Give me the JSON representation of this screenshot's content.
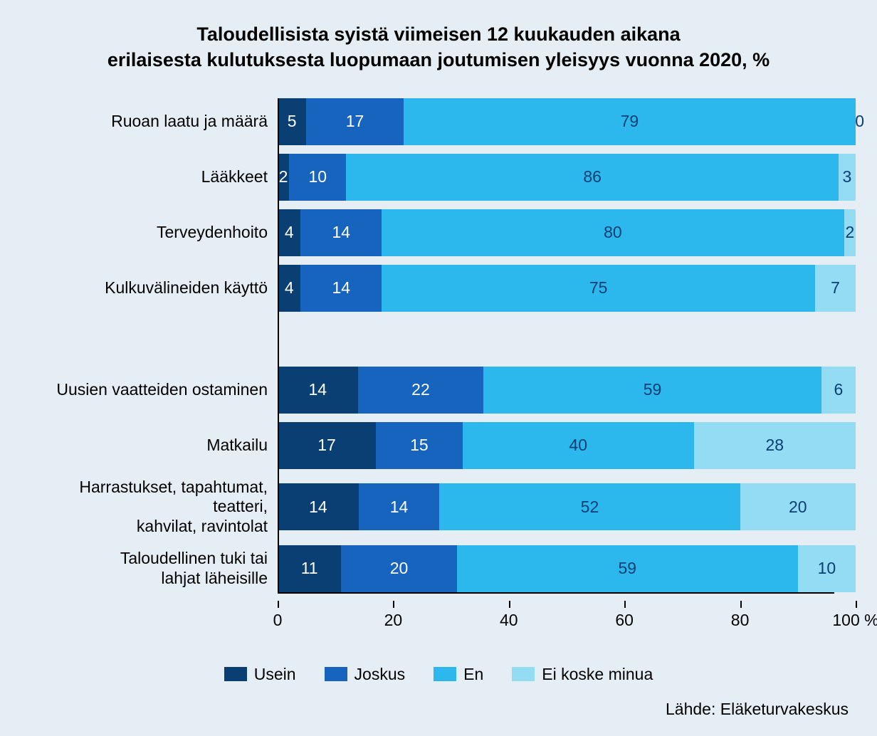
{
  "chart": {
    "type": "stacked_bar_horizontal",
    "background_color": "#e5eef4",
    "bar_area_background": "#ffffff",
    "title_lines": [
      "Taloudellisista syistä viimeisen 12 kuukauden aikana",
      "erilaisesta kulutuksesta luopumaan joutumisen yleisyys vuonna 2020, %"
    ],
    "title_fontsize": 27,
    "label_fontsize": 23,
    "value_fontsize": 23,
    "axis_fontsize": 23,
    "legend_fontsize": 23,
    "source_fontsize": 23,
    "xlim": [
      0,
      100
    ],
    "xticks": [
      0,
      20,
      40,
      60,
      80,
      100
    ],
    "xtick_suffix_last": " %",
    "series": [
      {
        "key": "usein",
        "label": "Usein",
        "color": "#0a3f73",
        "text_color": "#ffffff"
      },
      {
        "key": "joskus",
        "label": "Joskus",
        "color": "#1764bf",
        "text_color": "#ffffff"
      },
      {
        "key": "en",
        "label": "En",
        "color": "#2cb8ed",
        "text_color": "#0a3f73"
      },
      {
        "key": "eikoske",
        "label": "Ei koske minua",
        "color": "#94dbf4",
        "text_color": "#0a3f73"
      }
    ],
    "groups": [
      {
        "rows": [
          {
            "label": "Ruoan laatu ja määrä",
            "values": {
              "usein": 5,
              "joskus": 17,
              "en": 79,
              "eikoske": 0
            }
          },
          {
            "label": "Lääkkeet",
            "values": {
              "usein": 2,
              "joskus": 10,
              "en": 86,
              "eikoske": 3
            }
          },
          {
            "label": "Terveydenhoito",
            "values": {
              "usein": 4,
              "joskus": 14,
              "en": 80,
              "eikoske": 2
            }
          },
          {
            "label": "Kulkuvälineiden käyttö",
            "values": {
              "usein": 4,
              "joskus": 14,
              "en": 75,
              "eikoske": 7
            }
          }
        ]
      },
      {
        "rows": [
          {
            "label": "Uusien vaatteiden ostaminen",
            "values": {
              "usein": 14,
              "joskus": 22,
              "en": 59,
              "eikoske": 6
            }
          },
          {
            "label": "Matkailu",
            "values": {
              "usein": 17,
              "joskus": 15,
              "en": 40,
              "eikoske": 28
            }
          },
          {
            "label": "Harrastukset, tapahtumat, teatteri, kahvilat, ravintolat",
            "values": {
              "usein": 14,
              "joskus": 14,
              "en": 52,
              "eikoske": 20
            }
          },
          {
            "label": "Taloudellinen tuki tai lahjat läheisille",
            "values": {
              "usein": 11,
              "joskus": 20,
              "en": 59,
              "eikoske": 10
            }
          }
        ]
      }
    ],
    "source_label": "Lähde: Eläketurvakeskus"
  }
}
